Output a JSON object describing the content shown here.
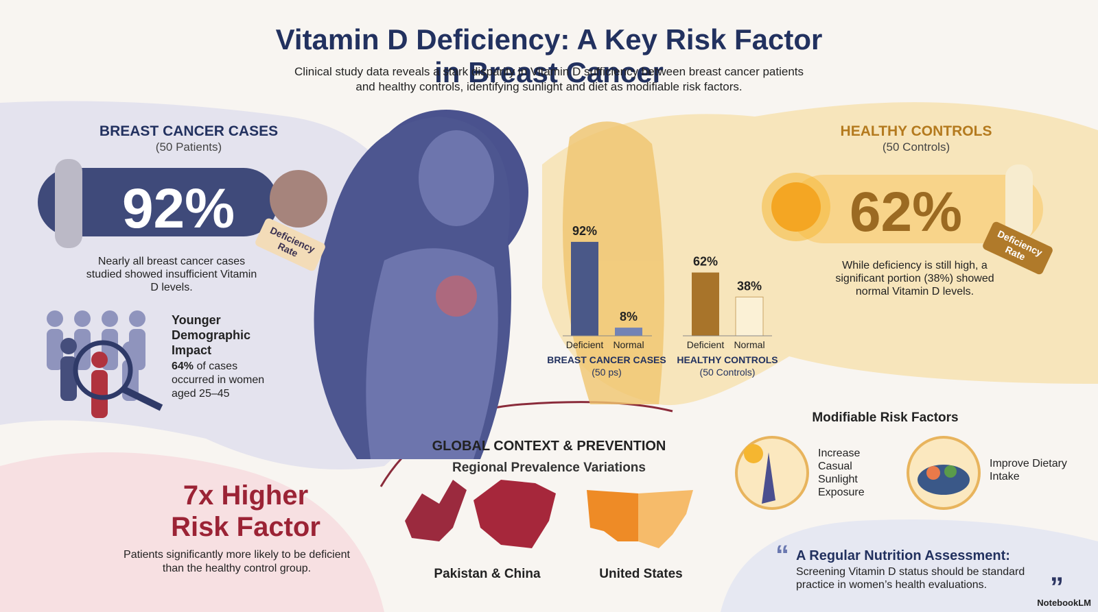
{
  "header": {
    "title": "Vitamin D Deficiency: A Key Risk Factor in Breast Cancer",
    "subtitle_lines": [
      "Clinical study data reveals a stark disparity in Vitamin D sufficiency between breast cancer patients",
      "and healthy controls, identifying sunlight and diet as modifiable risk factors."
    ]
  },
  "cases": {
    "heading": "BREAST CANCER CASES",
    "count": "(50 Patients)",
    "stat": "92%",
    "tag": "Deficiency Rate",
    "description": "Nearly all breast cancer cases studied showed insufficient Vitamin D levels."
  },
  "demographic": {
    "heading": "Younger Demographic Impact",
    "highlight": "64%",
    "text": "of cases occurred in women aged 25–45"
  },
  "risk": {
    "heading": "7x Higher Risk Factor",
    "text": "Patients significantly more likely to be deficient than the healthy control group."
  },
  "controls": {
    "heading": "HEALTHY CONTROLS",
    "count": "(50 Controls)",
    "stat": "62%",
    "tag": "Deficiency Rate",
    "description": "While deficiency is still high, a significant portion (38%) showed normal Vitamin D levels."
  },
  "chart_data": {
    "type": "bar",
    "categories": [
      "Deficient",
      "Normal",
      "Deficient",
      "Normal"
    ],
    "values": [
      92,
      8,
      62,
      38
    ],
    "value_labels": [
      "92%",
      "8%",
      "62%",
      "38%"
    ],
    "colors": [
      "#4a5888",
      "#7383b5",
      "#a8742a",
      "#fbf1d6"
    ],
    "groups": [
      {
        "name": "BREAST CANCER CASES",
        "note": "(50 ps)"
      },
      {
        "name": "HEALTHY CONTROLS",
        "note": "(50 Controls)"
      }
    ],
    "ylim": [
      0,
      100
    ]
  },
  "global": {
    "heading": "GLOBAL CONTEXT & PREVENTION",
    "subheading": "Regional Prevalence Variations",
    "regions": [
      "Pakistan & China",
      "United States"
    ]
  },
  "modifiable": {
    "heading": "Modifiable Risk Factors",
    "items": [
      "Increase Casual Sunlight Exposure",
      "Improve Dietary Intake"
    ]
  },
  "quote": {
    "heading": "A Regular Nutrition Assessment:",
    "text": "Screening Vitamin D status should be standard practice in women’s health evaluations."
  },
  "brand": "NotebookLM"
}
